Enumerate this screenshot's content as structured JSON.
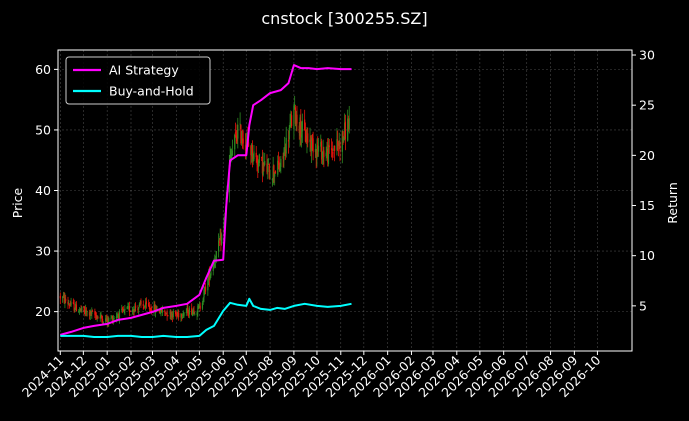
{
  "chart_data": {
    "type": "line",
    "title": "cnstock [300255.SZ]",
    "ylabel": "Price",
    "y2label": "Return",
    "ylim": [
      13.5,
      63.2
    ],
    "y2lim": [
      0.5,
      30.5
    ],
    "yticks": [
      20,
      30,
      40,
      50,
      60
    ],
    "y2ticks": [
      5,
      10,
      15,
      20,
      25,
      30
    ],
    "xlim": [
      "2024-10-29",
      "2026-11-15"
    ],
    "xticks": [
      "2024-11",
      "2024-12",
      "2025-01",
      "2025-02",
      "2025-03",
      "2025-04",
      "2025-05",
      "2025-06",
      "2025-07",
      "2025-08",
      "2025-09",
      "2025-10",
      "2025-11",
      "2025-12",
      "2026-01",
      "2026-02",
      "2026-03",
      "2026-04",
      "2026-05",
      "2026-06",
      "2026-07",
      "2026-08",
      "2026-09",
      "2026-10"
    ],
    "grid": true,
    "legend_position": "top-left",
    "candles": {
      "up_color": "#2e8b22",
      "down_color": "#e8140c",
      "x": [
        "2024-11-01",
        "2024-11-15",
        "2024-12-01",
        "2024-12-15",
        "2025-01-01",
        "2025-01-15",
        "2025-02-01",
        "2025-02-15",
        "2025-03-01",
        "2025-03-15",
        "2025-04-01",
        "2025-04-15",
        "2025-05-01",
        "2025-05-15",
        "2025-06-01",
        "2025-06-10",
        "2025-06-20",
        "2025-07-01",
        "2025-07-15",
        "2025-08-01",
        "2025-08-15",
        "2025-09-01",
        "2025-09-15",
        "2025-10-01",
        "2025-10-15",
        "2025-11-01",
        "2025-11-12"
      ],
      "values": [
        22.5,
        21.0,
        20.0,
        19.5,
        18.5,
        19.5,
        20.5,
        21.0,
        20.5,
        20.0,
        19.5,
        20.0,
        20.5,
        26.5,
        33.0,
        45.0,
        50.0,
        48.0,
        45.0,
        43.0,
        44.0,
        53.0,
        49.0,
        47.0,
        46.0,
        48.0,
        51.5
      ]
    },
    "series": [
      {
        "name": "AI Strategy",
        "axis": "right",
        "color": "#ff00ff",
        "x": [
          "2024-11-01",
          "2024-11-15",
          "2024-12-01",
          "2024-12-15",
          "2025-01-01",
          "2025-01-15",
          "2025-02-01",
          "2025-02-15",
          "2025-03-01",
          "2025-03-15",
          "2025-04-01",
          "2025-04-15",
          "2025-05-01",
          "2025-05-10",
          "2025-05-20",
          "2025-06-01",
          "2025-06-05",
          "2025-06-10",
          "2025-06-20",
          "2025-07-01",
          "2025-07-05",
          "2025-07-10",
          "2025-07-20",
          "2025-08-01",
          "2025-08-15",
          "2025-08-25",
          "2025-09-01",
          "2025-09-10",
          "2025-09-20",
          "2025-10-01",
          "2025-10-15",
          "2025-11-01",
          "2025-11-15"
        ],
        "values": [
          2.1,
          2.4,
          2.8,
          3.0,
          3.2,
          3.6,
          3.8,
          4.1,
          4.4,
          4.8,
          5.0,
          5.2,
          6.1,
          7.8,
          9.5,
          9.6,
          15.0,
          19.5,
          20.0,
          20.0,
          23.0,
          25.0,
          25.5,
          26.2,
          26.5,
          27.2,
          29.0,
          28.7,
          28.7,
          28.6,
          28.7,
          28.6,
          28.6
        ]
      },
      {
        "name": "Buy-and-Hold",
        "axis": "right",
        "color": "#00ffff",
        "x": [
          "2024-11-01",
          "2024-11-15",
          "2024-12-01",
          "2024-12-15",
          "2025-01-01",
          "2025-01-15",
          "2025-02-01",
          "2025-02-15",
          "2025-03-01",
          "2025-03-15",
          "2025-04-01",
          "2025-04-15",
          "2025-05-01",
          "2025-05-10",
          "2025-05-20",
          "2025-06-01",
          "2025-06-10",
          "2025-06-20",
          "2025-07-01",
          "2025-07-05",
          "2025-07-10",
          "2025-07-20",
          "2025-08-01",
          "2025-08-10",
          "2025-08-20",
          "2025-09-01",
          "2025-09-15",
          "2025-10-01",
          "2025-10-15",
          "2025-11-01",
          "2025-11-15"
        ],
        "values": [
          2.0,
          2.0,
          2.0,
          1.9,
          1.9,
          2.0,
          2.0,
          1.9,
          1.9,
          2.0,
          1.9,
          1.9,
          2.0,
          2.6,
          3.0,
          4.5,
          5.3,
          5.1,
          5.0,
          5.7,
          5.0,
          4.7,
          4.6,
          4.8,
          4.7,
          5.0,
          5.2,
          5.0,
          4.9,
          5.0,
          5.2
        ]
      }
    ]
  }
}
